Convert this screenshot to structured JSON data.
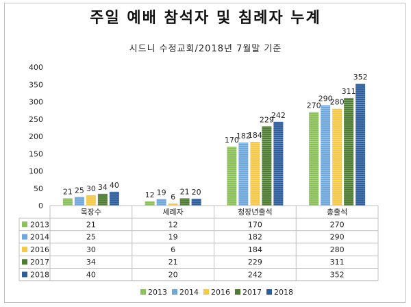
{
  "title": "주일 예배 참석자 및 침례자 누계",
  "subtitle": "시드니 수정교회/2018년 7월말 기준",
  "colors": {
    "2013": "#8cc15a",
    "2014": "#6ea8dc",
    "2016": "#f6c847",
    "2017": "#4e7d32",
    "2018": "#2d5d9b"
  },
  "chart_data": {
    "type": "bar",
    "title": "주일 예배 참석자 및 침례자 누계",
    "subtitle": "시드니 수정교회/2018년 7월말 기준",
    "categories": [
      "목장수",
      "세례자",
      "청장년출석",
      "총출석"
    ],
    "series": [
      {
        "name": "2013",
        "values": [
          21,
          12,
          170,
          270
        ]
      },
      {
        "name": "2014",
        "values": [
          25,
          19,
          182,
          290
        ]
      },
      {
        "name": "2016",
        "values": [
          30,
          6,
          184,
          280
        ]
      },
      {
        "name": "2017",
        "values": [
          34,
          21,
          229,
          311
        ]
      },
      {
        "name": "2018",
        "values": [
          40,
          20,
          242,
          352
        ]
      }
    ],
    "ylim": [
      0,
      400
    ],
    "yticks": [
      0,
      50,
      100,
      150,
      200,
      250,
      300,
      350,
      400
    ],
    "grid": false,
    "legend_position": "bottom",
    "data_table": true
  }
}
